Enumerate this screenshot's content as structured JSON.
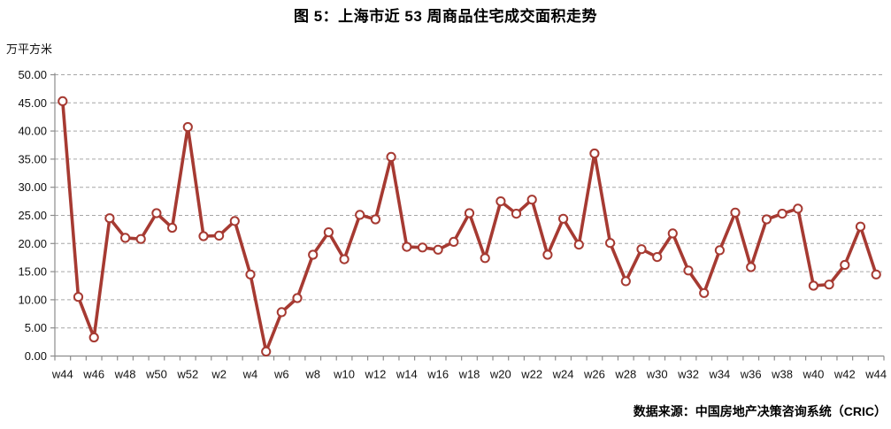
{
  "header": {
    "title": "图 5：上海市近 53 周商品住宅成交面积走势"
  },
  "footer": {
    "source": "数据来源：中国房地产决策咨询系统（CRIC）"
  },
  "chart_data": {
    "type": "line",
    "title": "图 5：上海市近 53 周商品住宅成交面积走势",
    "unit_label": "万平方米",
    "ylabel": "万平方米",
    "xlabel": "",
    "categories": [
      "w44",
      "w45",
      "w46",
      "w47",
      "w48",
      "w49",
      "w50",
      "w51",
      "w52",
      "w1",
      "w2",
      "w3",
      "w4",
      "w5",
      "w6",
      "w7",
      "w8",
      "w9",
      "w10",
      "w11",
      "w12",
      "w13",
      "w14",
      "w15",
      "w16",
      "w17",
      "w18",
      "w19",
      "w20",
      "w21",
      "w22",
      "w23",
      "w24",
      "w25",
      "w26",
      "w27",
      "w28",
      "w29",
      "w30",
      "w31",
      "w32",
      "w33",
      "w34",
      "w35",
      "w36",
      "w37",
      "w38",
      "w39",
      "w40",
      "w41",
      "w42",
      "w43",
      "w44"
    ],
    "values": [
      45.3,
      10.5,
      3.3,
      24.5,
      21.0,
      20.8,
      25.4,
      22.8,
      40.7,
      21.3,
      21.4,
      24.0,
      14.5,
      0.8,
      7.8,
      10.3,
      18.0,
      22.0,
      17.2,
      25.1,
      24.3,
      35.4,
      19.4,
      19.3,
      18.9,
      20.3,
      25.4,
      17.4,
      27.5,
      25.3,
      27.8,
      18.0,
      24.4,
      19.8,
      36.0,
      20.1,
      13.3,
      19.0,
      17.6,
      21.8,
      15.2,
      11.2,
      18.8,
      25.5,
      15.8,
      24.3,
      25.3,
      26.2,
      12.5,
      12.7,
      16.2,
      23.0,
      14.5
    ],
    "ylim": [
      0,
      50
    ],
    "ytick_step": 5,
    "ytick_decimals": 2,
    "x_label_every": 2,
    "legend_position": "none",
    "grid": "horizontal-dashed",
    "marker": "open-circle",
    "colors": {
      "line": "#A63A32",
      "marker_fill": "#FFFFFF",
      "grid": "#A6A6A6",
      "axis": "#8C8C8C",
      "tick_text": "#111111"
    }
  }
}
